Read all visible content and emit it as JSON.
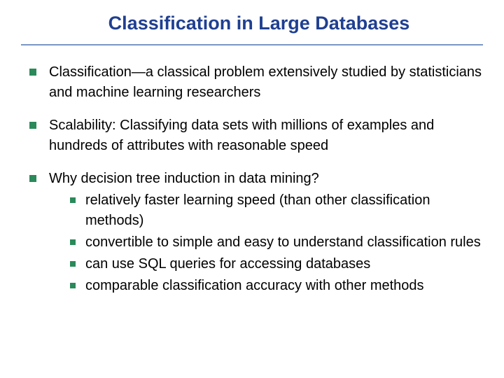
{
  "colors": {
    "title": "#1f3f91",
    "rule": "#7a97c4",
    "body": "#000000",
    "bullet": "#2a8a5a",
    "background": "#ffffff"
  },
  "title": "Classification in Large Databases",
  "bullets": [
    {
      "text": "Classification—a classical problem extensively studied by statisticians and machine learning researchers"
    },
    {
      "text": "Scalability: Classifying data sets with millions of examples and hundreds of attributes with reasonable speed"
    },
    {
      "text": "Why decision tree induction in data mining?",
      "sub": [
        "relatively faster learning speed (than other classification methods)",
        "convertible to simple and easy to understand classification rules",
        "can use SQL queries for accessing databases",
        "comparable classification accuracy with other methods"
      ]
    }
  ]
}
